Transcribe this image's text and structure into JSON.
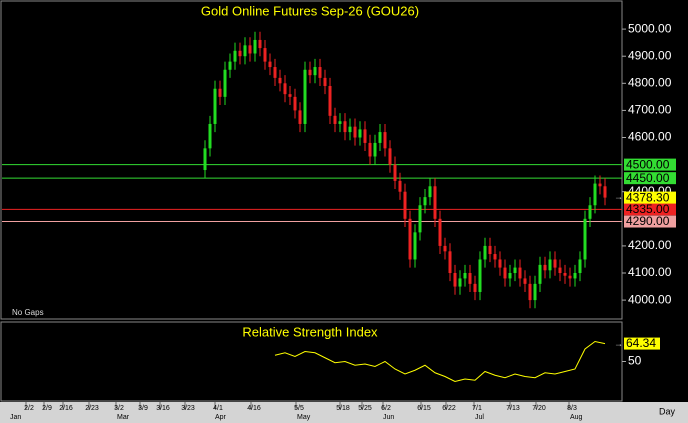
{
  "chart_data": {
    "type": "candlestick",
    "title": "Gold  Online  Futures  Sep-26  (GOU26)",
    "note": "No Gaps",
    "ylim": [
      3934,
      5100
    ],
    "yticks": [
      {
        "value": 5000,
        "label": "5000.00"
      },
      {
        "value": 4900,
        "label": "4900.00"
      },
      {
        "value": 4800,
        "label": "4800.00"
      },
      {
        "value": 4700,
        "label": "4700.00"
      },
      {
        "value": 4600,
        "label": "4600.00"
      },
      {
        "value": 4400,
        "label": "4400.00"
      },
      {
        "value": 4200,
        "label": "4200.00"
      },
      {
        "value": 4100,
        "label": "4100.00"
      },
      {
        "value": 4000,
        "label": "4000.00"
      }
    ],
    "xlim": [
      -41,
      83.4
    ],
    "xticks": [
      {
        "value": -35.2,
        "label": "2/2"
      },
      {
        "value": -31.6,
        "label": "2/9"
      },
      {
        "value": -27.8,
        "label": "2/16"
      },
      {
        "value": -22.6,
        "label": "2/23"
      },
      {
        "value": -17.2,
        "label": "3/2"
      },
      {
        "value": -12.4,
        "label": "3/9"
      },
      {
        "value": -8.4,
        "label": "3/16"
      },
      {
        "value": -3.4,
        "label": "3/23"
      },
      {
        "value": 2.6,
        "label": "4/1"
      },
      {
        "value": 9.8,
        "label": "4/16"
      },
      {
        "value": 18.8,
        "label": "5/5"
      },
      {
        "value": 27.6,
        "label": "5/18"
      },
      {
        "value": 32,
        "label": "5/25"
      },
      {
        "value": 36.2,
        "label": "6/2"
      },
      {
        "value": 43.8,
        "label": "6/15"
      },
      {
        "value": 48.8,
        "label": "6/22"
      },
      {
        "value": 54.4,
        "label": "7/1"
      },
      {
        "value": 61.6,
        "label": "7/13"
      },
      {
        "value": 66.8,
        "label": "7/20"
      },
      {
        "value": 73.4,
        "label": "8/3"
      }
    ],
    "months": [
      {
        "value": -39,
        "label": "Jan"
      },
      {
        "value": -17.6,
        "label": "Mar"
      },
      {
        "value": 2,
        "label": "Apr"
      },
      {
        "value": 18.4,
        "label": "May"
      },
      {
        "value": 35.6,
        "label": "Jun"
      },
      {
        "value": 54,
        "label": "Jul"
      },
      {
        "value": 73,
        "label": "Aug"
      }
    ],
    "x_unit": "Day",
    "up_color": "#22dd22",
    "down_color": "#ee2222",
    "open": [
      4480,
      4560,
      4650,
      4780,
      4750,
      4850,
      4880,
      4920,
      4900,
      4940,
      4910,
      4960,
      4930,
      4880,
      4860,
      4820,
      4800,
      4760,
      4750,
      4700,
      4650,
      4850,
      4830,
      4860,
      4820,
      4790,
      4680,
      4650,
      4660,
      4620,
      4640,
      4600,
      4630,
      4580,
      4530,
      4580,
      4620,
      4560,
      4500,
      4440,
      4400,
      4300,
      4150,
      4250,
      4350,
      4380,
      4420,
      4300,
      4200,
      4180,
      4100,
      4050,
      4080,
      4100,
      4060,
      4030,
      4150,
      4200,
      4170,
      4150,
      4120,
      4080,
      4100,
      4120,
      4080,
      4060,
      4000,
      4060,
      4130,
      4110,
      4150,
      4120,
      4100,
      4090,
      4080,
      4100,
      4150,
      4300,
      4350,
      4430,
      4420
    ],
    "high": [
      4590,
      4680,
      4810,
      4810,
      4880,
      4910,
      4950,
      4950,
      4970,
      4970,
      4990,
      4990,
      4960,
      4910,
      4890,
      4850,
      4830,
      4790,
      4780,
      4730,
      4880,
      4880,
      4890,
      4890,
      4850,
      4820,
      4710,
      4690,
      4690,
      4670,
      4670,
      4660,
      4660,
      4610,
      4610,
      4650,
      4650,
      4590,
      4530,
      4470,
      4430,
      4330,
      4280,
      4380,
      4410,
      4450,
      4450,
      4330,
      4230,
      4210,
      4130,
      4110,
      4130,
      4130,
      4090,
      4180,
      4230,
      4230,
      4200,
      4180,
      4150,
      4130,
      4150,
      4150,
      4110,
      4090,
      4090,
      4160,
      4160,
      4180,
      4180,
      4150,
      4130,
      4120,
      4130,
      4180,
      4330,
      4380,
      4460,
      4460,
      4450
    ],
    "low": [
      4450,
      4530,
      4620,
      4720,
      4720,
      4820,
      4850,
      4870,
      4870,
      4880,
      4880,
      4900,
      4850,
      4830,
      4790,
      4770,
      4730,
      4720,
      4670,
      4620,
      4620,
      4800,
      4800,
      4790,
      4760,
      4650,
      4620,
      4620,
      4590,
      4590,
      4570,
      4570,
      4550,
      4500,
      4500,
      4550,
      4530,
      4470,
      4410,
      4370,
      4270,
      4120,
      4120,
      4220,
      4320,
      4350,
      4270,
      4170,
      4150,
      4070,
      4020,
      4020,
      4050,
      4030,
      4000,
      4000,
      4120,
      4140,
      4120,
      4090,
      4050,
      4050,
      4070,
      4050,
      4030,
      3970,
      3970,
      4030,
      4080,
      4080,
      4090,
      4070,
      4060,
      4050,
      4050,
      4070,
      4120,
      4270,
      4320,
      4390,
      4350
    ],
    "close": [
      4560,
      4650,
      4780,
      4750,
      4850,
      4880,
      4920,
      4900,
      4940,
      4910,
      4960,
      4930,
      4880,
      4860,
      4820,
      4800,
      4760,
      4750,
      4700,
      4650,
      4850,
      4830,
      4860,
      4820,
      4790,
      4680,
      4650,
      4660,
      4620,
      4640,
      4600,
      4630,
      4580,
      4530,
      4580,
      4620,
      4560,
      4500,
      4440,
      4400,
      4300,
      4150,
      4250,
      4350,
      4380,
      4420,
      4300,
      4200,
      4180,
      4100,
      4050,
      4080,
      4100,
      4060,
      4030,
      4150,
      4200,
      4170,
      4150,
      4120,
      4080,
      4100,
      4120,
      4080,
      4060,
      4000,
      4060,
      4130,
      4110,
      4150,
      4120,
      4100,
      4090,
      4080,
      4100,
      4150,
      4300,
      4350,
      4430,
      4420,
      4378.3
    ],
    "last": {
      "value": 4378.3,
      "value_label": "4378.30",
      "color": "#ffff00"
    },
    "levels": [
      {
        "value": 4500,
        "label": "4500.00",
        "color": "#33dd33"
      },
      {
        "value": 4450,
        "label": "4450.00",
        "color": "#33dd33"
      },
      {
        "value": 4335,
        "label": "4335.00",
        "color": "#ee2222"
      },
      {
        "value": 4290,
        "label": "4290.00",
        "color": "#f0a0a0"
      }
    ],
    "rsi": {
      "title": "Relative  Strength  Index",
      "color": "#ffff00",
      "ylim": [
        20,
        80
      ],
      "yticks": [
        50
      ],
      "x": [
        14,
        16,
        18,
        20,
        22,
        24,
        26,
        28,
        30,
        32,
        34,
        36,
        38,
        40,
        42,
        44,
        46,
        48,
        50,
        52,
        54,
        56,
        58,
        60,
        62,
        64,
        66,
        68,
        70,
        72,
        74,
        76,
        78,
        80
      ],
      "values": [
        55,
        57,
        54,
        58,
        57,
        53,
        49,
        50,
        47,
        48,
        46,
        50,
        44,
        40,
        43,
        47,
        41,
        38,
        34,
        36,
        35,
        42,
        39,
        37,
        40,
        38,
        37,
        41,
        40,
        42,
        44,
        60,
        66,
        64.34
      ]
    }
  }
}
